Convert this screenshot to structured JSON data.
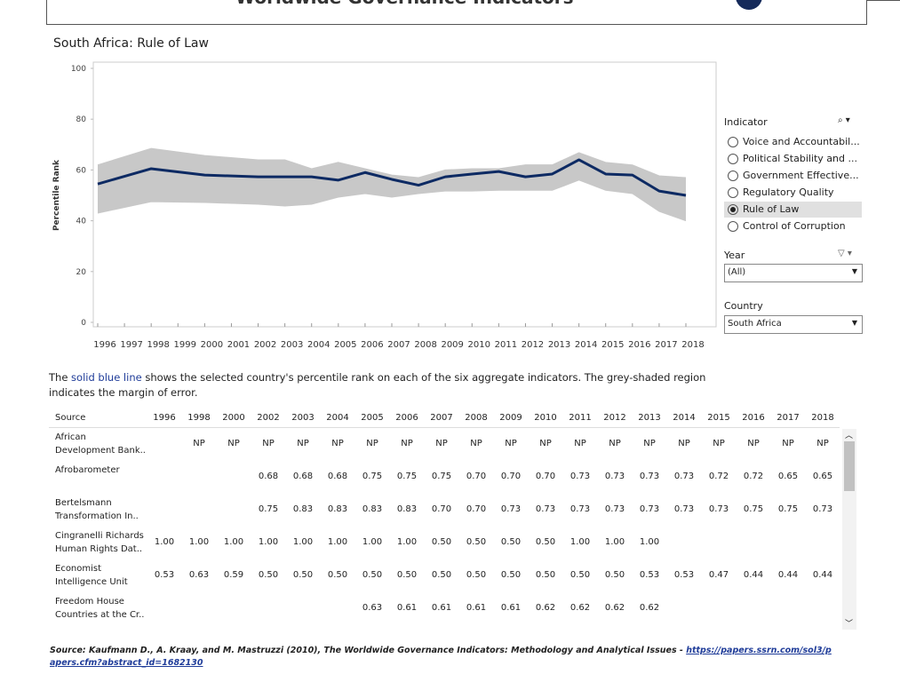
{
  "header": {
    "title": "Worldwide Governance Indicators"
  },
  "chart_data": {
    "type": "line",
    "title": "South Africa: Rule of Law",
    "y_label": "Percentile Rank",
    "x": [
      1996,
      1998,
      2000,
      2002,
      2003,
      2004,
      2005,
      2006,
      2007,
      2008,
      2009,
      2010,
      2011,
      2012,
      2013,
      2014,
      2015,
      2016,
      2017,
      2018
    ],
    "series": [
      {
        "color": "#0d2a63",
        "values": [
          54.5,
          60.5,
          58,
          57.3,
          57.3,
          57.3,
          56,
          59,
          56.3,
          54,
          57.3,
          58.4,
          59.4,
          57.3,
          58.4,
          64,
          58.4,
          58,
          51.7,
          50
        ]
      }
    ],
    "margin_upper": [
      62,
      68.5,
      65.7,
      64,
      64,
      60.5,
      63,
      60.5,
      58,
      57,
      60,
      60.5,
      60.5,
      62,
      62,
      66.8,
      63,
      62,
      57.7,
      57
    ],
    "margin_lower": [
      43,
      47.5,
      47.2,
      46.5,
      45.8,
      46.5,
      49.3,
      50.7,
      49.3,
      50.7,
      51.7,
      51.7,
      52,
      52,
      52,
      56,
      52,
      50.7,
      43.7,
      40
    ],
    "margin_color": "#c8c8c8",
    "xlim": [
      1996,
      2018
    ],
    "xticks": [
      1996,
      1997,
      1998,
      1999,
      2000,
      2001,
      2002,
      2003,
      2004,
      2005,
      2006,
      2007,
      2008,
      2009,
      2010,
      2011,
      2012,
      2013,
      2014,
      2015,
      2016,
      2017,
      2018
    ],
    "ylim": [
      0,
      100
    ],
    "yticks": [
      0,
      20,
      40,
      60,
      80,
      100
    ]
  },
  "filters": {
    "indicator": {
      "label": "Indicator",
      "options": [
        "Voice and Accountabil...",
        "Political Stability and ...",
        "Government Effective...",
        "Regulatory Quality",
        "Rule of Law",
        "Control of Corruption"
      ],
      "selected": 4
    },
    "year": {
      "label": "Year",
      "value": "(All)"
    },
    "country": {
      "label": "Country",
      "value": "South Africa"
    }
  },
  "description": {
    "before": "The ",
    "highlight": "solid blue line",
    "after": " shows the selected country's percentile rank on each of the six aggregate indicators.  The grey-shaded region indicates the margin of error."
  },
  "table": {
    "header": [
      "Source",
      "1996",
      "1998",
      "2000",
      "2002",
      "2003",
      "2004",
      "2005",
      "2006",
      "2007",
      "2008",
      "2009",
      "2010",
      "2011",
      "2012",
      "2013",
      "2014",
      "2015",
      "2016",
      "2017",
      "2018"
    ],
    "rows": [
      [
        "African\nDevelopment Bank..",
        null,
        "NP",
        "NP",
        "NP",
        "NP",
        "NP",
        "NP",
        "NP",
        "NP",
        "NP",
        "NP",
        "NP",
        "NP",
        "NP",
        "NP",
        "NP",
        "NP",
        "NP",
        "NP",
        "NP"
      ],
      [
        "Afrobarometer",
        null,
        null,
        null,
        "0.68",
        "0.68",
        "0.68",
        "0.75",
        "0.75",
        "0.75",
        "0.70",
        "0.70",
        "0.70",
        "0.73",
        "0.73",
        "0.73",
        "0.73",
        "0.72",
        "0.72",
        "0.65",
        "0.65"
      ],
      [
        "Bertelsmann\nTransformation In..",
        null,
        null,
        null,
        "0.75",
        "0.83",
        "0.83",
        "0.83",
        "0.83",
        "0.70",
        "0.70",
        "0.73",
        "0.73",
        "0.73",
        "0.73",
        "0.73",
        "0.73",
        "0.73",
        "0.75",
        "0.75",
        "0.73"
      ],
      [
        "Cingranelli Richards\nHuman Rights Dat..",
        "1.00",
        "1.00",
        "1.00",
        "1.00",
        "1.00",
        "1.00",
        "1.00",
        "1.00",
        "0.50",
        "0.50",
        "0.50",
        "0.50",
        "1.00",
        "1.00",
        "1.00",
        null,
        null,
        null,
        null,
        null
      ],
      [
        "Economist\nIntelligence Unit",
        "0.53",
        "0.63",
        "0.59",
        "0.50",
        "0.50",
        "0.50",
        "0.50",
        "0.50",
        "0.50",
        "0.50",
        "0.50",
        "0.50",
        "0.50",
        "0.50",
        "0.53",
        "0.53",
        "0.47",
        "0.44",
        "0.44",
        "0.44"
      ],
      [
        "Freedom House\nCountries at the Cr..",
        null,
        null,
        null,
        null,
        null,
        null,
        "0.63",
        "0.61",
        "0.61",
        "0.61",
        "0.61",
        "0.62",
        "0.62",
        "0.62",
        "0.62",
        null,
        null,
        null,
        null,
        null
      ]
    ]
  },
  "source": {
    "text": "Source: Kaufmann D., A. Kraay, and M. Mastruzzi (2010), The Worldwide Governance Indicators: Methodology and Analytical Issues - ",
    "link": "https://papers.ssrn.com/sol3/papers.cfm?abstract_id=1682130"
  }
}
